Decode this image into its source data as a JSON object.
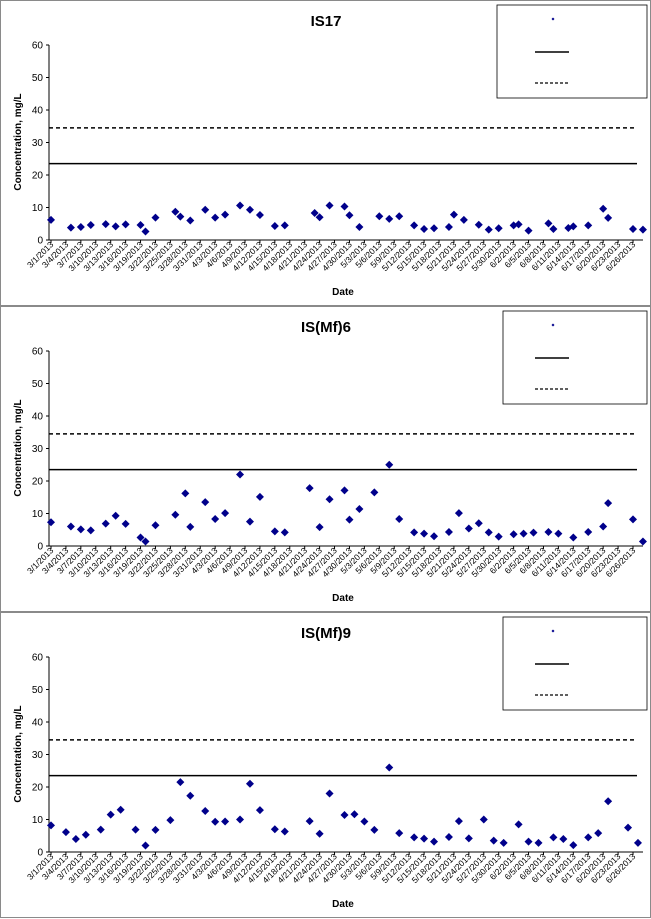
{
  "chart_data": [
    {
      "type": "scatter",
      "title": "IS17",
      "xlabel": "Date",
      "ylabel": "Concentration, mg/L",
      "ylim": [
        0,
        60
      ],
      "yticks": [
        0,
        10,
        20,
        30,
        40,
        50,
        60
      ],
      "x_tick_labels": [
        "3/1/2013",
        "3/4/2013",
        "3/7/2013",
        "3/10/2013",
        "3/13/2013",
        "3/16/2013",
        "3/19/2013",
        "3/22/2013",
        "3/25/2013",
        "3/28/2013",
        "3/31/2013",
        "4/3/2013",
        "4/6/2013",
        "4/9/2013",
        "4/12/2013",
        "4/15/2013",
        "4/18/2013",
        "4/21/2013",
        "4/24/2013",
        "4/27/2013",
        "4/30/2013",
        "5/3/2013",
        "5/6/2013",
        "5/9/2013",
        "5/12/2013",
        "5/15/2013",
        "5/18/2013",
        "5/21/2013",
        "5/24/2013",
        "5/27/2013",
        "5/30/2013",
        "6/2/2013",
        "6/5/2013",
        "6/8/2013",
        "6/11/2013",
        "6/14/2013",
        "6/17/2013",
        "6/20/2013",
        "6/23/2013",
        "6/26/2013"
      ],
      "grid": false,
      "legend_position": "top-right",
      "reference_lines": [
        {
          "value": 23.5,
          "style": "solid"
        },
        {
          "value": 34.5,
          "style": "dashed"
        }
      ],
      "series": [
        {
          "marker": "diamond",
          "color": "#00008B",
          "x": [
            "3/1/2013",
            "3/5/2013",
            "3/7/2013",
            "3/9/2013",
            "3/12/2013",
            "3/14/2013",
            "3/16/2013",
            "3/19/2013",
            "3/20/2013",
            "3/22/2013",
            "3/26/2013",
            "3/27/2013",
            "3/29/2013",
            "4/1/2013",
            "4/3/2013",
            "4/5/2013",
            "4/8/2013",
            "4/10/2013",
            "4/12/2013",
            "4/15/2013",
            "4/17/2013",
            "4/23/2013",
            "4/24/2013",
            "4/26/2013",
            "4/29/2013",
            "4/30/2013",
            "5/2/2013",
            "5/6/2013",
            "5/8/2013",
            "5/10/2013",
            "5/13/2013",
            "5/15/2013",
            "5/17/2013",
            "5/20/2013",
            "5/21/2013",
            "5/23/2013",
            "5/26/2013",
            "5/28/2013",
            "5/30/2013",
            "6/2/2013",
            "6/3/2013",
            "6/5/2013",
            "6/9/2013",
            "6/10/2013",
            "6/13/2013",
            "6/14/2013",
            "6/17/2013",
            "6/20/2013",
            "6/21/2013",
            "6/26/2013",
            "6/28/2013"
          ],
          "y": [
            6.2,
            3.8,
            4.0,
            4.6,
            4.9,
            4.2,
            4.8,
            4.6,
            2.6,
            6.9,
            8.7,
            7.2,
            6.0,
            9.3,
            6.9,
            7.8,
            10.6,
            9.3,
            7.7,
            4.3,
            4.5,
            8.3,
            7.0,
            10.6,
            10.3,
            7.6,
            4.0,
            7.3,
            6.5,
            7.3,
            4.5,
            3.4,
            3.6,
            4.0,
            7.8,
            6.2,
            4.7,
            3.2,
            3.6,
            4.5,
            4.8,
            2.9,
            5.1,
            3.4,
            3.7,
            4.2,
            4.5,
            9.6,
            6.8,
            3.4,
            3.2
          ]
        }
      ]
    },
    {
      "type": "scatter",
      "title": "IS(Mf)6",
      "xlabel": "Date",
      "ylabel": "Concentration, mg/L",
      "ylim": [
        0,
        60
      ],
      "yticks": [
        0,
        10,
        20,
        30,
        40,
        50,
        60
      ],
      "x_tick_labels": [
        "3/1/2013",
        "3/4/2013",
        "3/7/2013",
        "3/10/2013",
        "3/13/2013",
        "3/16/2013",
        "3/19/2013",
        "3/22/2013",
        "3/25/2013",
        "3/28/2013",
        "3/31/2013",
        "4/3/2013",
        "4/6/2013",
        "4/9/2013",
        "4/12/2013",
        "4/15/2013",
        "4/18/2013",
        "4/21/2013",
        "4/24/2013",
        "4/27/2013",
        "4/30/2013",
        "5/3/2013",
        "5/6/2013",
        "5/9/2013",
        "5/12/2013",
        "5/15/2013",
        "5/18/2013",
        "5/21/2013",
        "5/24/2013",
        "5/27/2013",
        "5/30/2013",
        "6/2/2013",
        "6/5/2013",
        "6/8/2013",
        "6/11/2013",
        "6/14/2013",
        "6/17/2013",
        "6/20/2013",
        "6/23/2013",
        "6/26/2013"
      ],
      "grid": false,
      "legend_position": "top-right",
      "reference_lines": [
        {
          "value": 23.5,
          "style": "solid"
        },
        {
          "value": 34.5,
          "style": "dashed"
        }
      ],
      "series": [
        {
          "marker": "diamond",
          "color": "#00008B",
          "x": [
            "3/1/2013",
            "3/5/2013",
            "3/7/2013",
            "3/9/2013",
            "3/12/2013",
            "3/14/2013",
            "3/16/2013",
            "3/19/2013",
            "3/20/2013",
            "3/22/2013",
            "3/26/2013",
            "3/28/2013",
            "3/29/2013",
            "4/1/2013",
            "4/3/2013",
            "4/5/2013",
            "4/8/2013",
            "4/10/2013",
            "4/12/2013",
            "4/15/2013",
            "4/17/2013",
            "4/22/2013",
            "4/24/2013",
            "4/26/2013",
            "4/29/2013",
            "4/30/2013",
            "5/2/2013",
            "5/5/2013",
            "5/8/2013",
            "5/10/2013",
            "5/13/2013",
            "5/15/2013",
            "5/17/2013",
            "5/20/2013",
            "5/22/2013",
            "5/24/2013",
            "5/26/2013",
            "5/28/2013",
            "5/30/2013",
            "6/2/2013",
            "6/4/2013",
            "6/6/2013",
            "6/9/2013",
            "6/11/2013",
            "6/14/2013",
            "6/17/2013",
            "6/20/2013",
            "6/21/2013",
            "6/26/2013",
            "6/28/2013"
          ],
          "y": [
            7.3,
            6.0,
            5.1,
            4.8,
            6.9,
            9.3,
            6.8,
            2.6,
            1.4,
            6.4,
            9.6,
            16.2,
            5.9,
            13.5,
            8.3,
            10.1,
            22.0,
            7.5,
            15.1,
            4.5,
            4.2,
            17.8,
            5.8,
            14.4,
            17.1,
            8.1,
            11.4,
            16.5,
            25.0,
            8.3,
            4.2,
            3.8,
            3.0,
            4.3,
            10.1,
            5.4,
            7.0,
            4.2,
            2.9,
            3.6,
            3.8,
            4.1,
            4.3,
            3.8,
            2.6,
            4.3,
            6.0,
            13.2,
            8.2,
            1.4
          ]
        }
      ]
    },
    {
      "type": "scatter",
      "title": "IS(Mf)9",
      "xlabel": "Date",
      "ylabel": "Concentration, mg/L",
      "ylim": [
        0,
        60
      ],
      "yticks": [
        0,
        10,
        20,
        30,
        40,
        50,
        60
      ],
      "x_tick_labels": [
        "3/1/2013",
        "3/4/2013",
        "3/7/2013",
        "3/10/2013",
        "3/13/2013",
        "3/16/2013",
        "3/19/2013",
        "3/22/2013",
        "3/25/2013",
        "3/28/2013",
        "3/31/2013",
        "4/3/2013",
        "4/6/2013",
        "4/9/2013",
        "4/12/2013",
        "4/15/2013",
        "4/18/2013",
        "4/21/2013",
        "4/24/2013",
        "4/27/2013",
        "4/30/2013",
        "5/3/2013",
        "5/6/2013",
        "5/9/2013",
        "5/12/2013",
        "5/15/2013",
        "5/18/2013",
        "5/21/2013",
        "5/24/2013",
        "5/27/2013",
        "5/30/2013",
        "6/2/2013",
        "6/5/2013",
        "6/8/2013",
        "6/11/2013",
        "6/14/2013",
        "6/17/2013",
        "6/20/2013",
        "6/23/2013",
        "6/26/2013"
      ],
      "grid": false,
      "legend_position": "top-right",
      "reference_lines": [
        {
          "value": 23.5,
          "style": "solid"
        },
        {
          "value": 34.5,
          "style": "dashed"
        }
      ],
      "series": [
        {
          "marker": "diamond",
          "color": "#00008B",
          "x": [
            "3/1/2013",
            "3/4/2013",
            "3/6/2013",
            "3/8/2013",
            "3/11/2013",
            "3/13/2013",
            "3/15/2013",
            "3/18/2013",
            "3/20/2013",
            "3/22/2013",
            "3/25/2013",
            "3/27/2013",
            "3/29/2013",
            "4/1/2013",
            "4/3/2013",
            "4/5/2013",
            "4/8/2013",
            "4/10/2013",
            "4/12/2013",
            "4/15/2013",
            "4/17/2013",
            "4/22/2013",
            "4/24/2013",
            "4/26/2013",
            "4/29/2013",
            "5/1/2013",
            "5/3/2013",
            "5/5/2013",
            "5/8/2013",
            "5/10/2013",
            "5/13/2013",
            "5/15/2013",
            "5/17/2013",
            "5/20/2013",
            "5/22/2013",
            "5/24/2013",
            "5/27/2013",
            "5/29/2013",
            "5/31/2013",
            "6/3/2013",
            "6/5/2013",
            "6/7/2013",
            "6/10/2013",
            "6/12/2013",
            "6/14/2013",
            "6/17/2013",
            "6/19/2013",
            "6/21/2013",
            "6/25/2013",
            "6/27/2013"
          ],
          "y": [
            8.2,
            6.1,
            4.0,
            5.3,
            6.9,
            11.5,
            13.0,
            6.9,
            2.0,
            6.8,
            9.8,
            21.5,
            17.3,
            12.6,
            9.3,
            9.4,
            10.0,
            21.0,
            12.9,
            7.0,
            6.3,
            9.5,
            5.6,
            18.0,
            11.4,
            11.6,
            9.4,
            6.8,
            26.0,
            5.8,
            4.5,
            4.1,
            3.2,
            4.6,
            9.5,
            4.2,
            10.0,
            3.5,
            2.8,
            8.5,
            3.2,
            2.8,
            4.5,
            4.0,
            2.1,
            4.5,
            5.8,
            15.6,
            7.5,
            2.8
          ]
        }
      ]
    }
  ]
}
